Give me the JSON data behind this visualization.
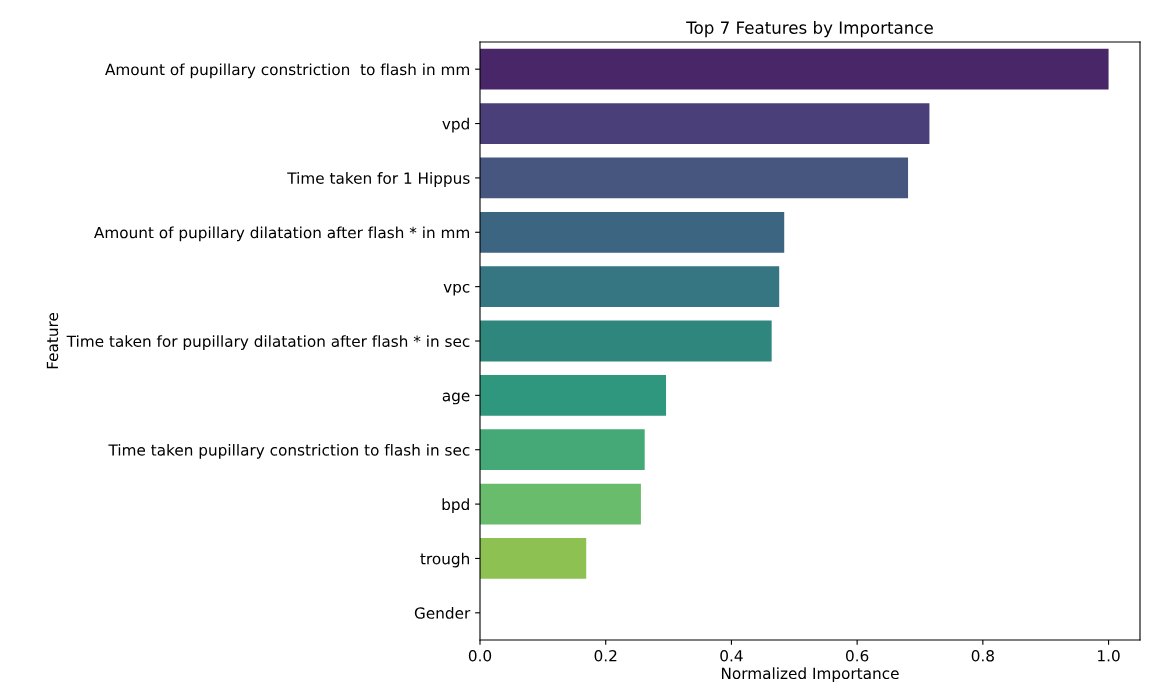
{
  "chart_data": {
    "type": "bar",
    "orientation": "horizontal",
    "title": "Top 7 Features by Importance",
    "xlabel": "Normalized Importance",
    "ylabel": "Feature",
    "categories": [
      "Amount of pupillary constriction  to flash in mm",
      "vpd",
      "Time taken for 1 Hippus",
      "Amount of pupillary dilatation after flash * in mm",
      "vpc",
      "Time taken for pupillary dilatation after flash * in sec",
      "age",
      "Time taken pupillary constriction to flash in sec",
      "bpd",
      "trough",
      "Gender"
    ],
    "values": [
      1.0,
      0.715,
      0.681,
      0.484,
      0.476,
      0.464,
      0.296,
      0.262,
      0.256,
      0.169,
      0
    ],
    "colors": [
      "#482667",
      "#4b3f7a",
      "#46567f",
      "#3b6580",
      "#357682",
      "#2e867c",
      "#2f977d",
      "#45a877",
      "#6abc6d",
      "#8dc252",
      "#b5d33c"
    ],
    "xlim": [
      0,
      1.05
    ],
    "xticks": [
      {
        "value": 0,
        "label": "0.0"
      },
      0.2,
      0.4,
      0.6,
      0.8,
      {
        "value": 1,
        "label": "1.0"
      }
    ],
    "grid": false
  }
}
